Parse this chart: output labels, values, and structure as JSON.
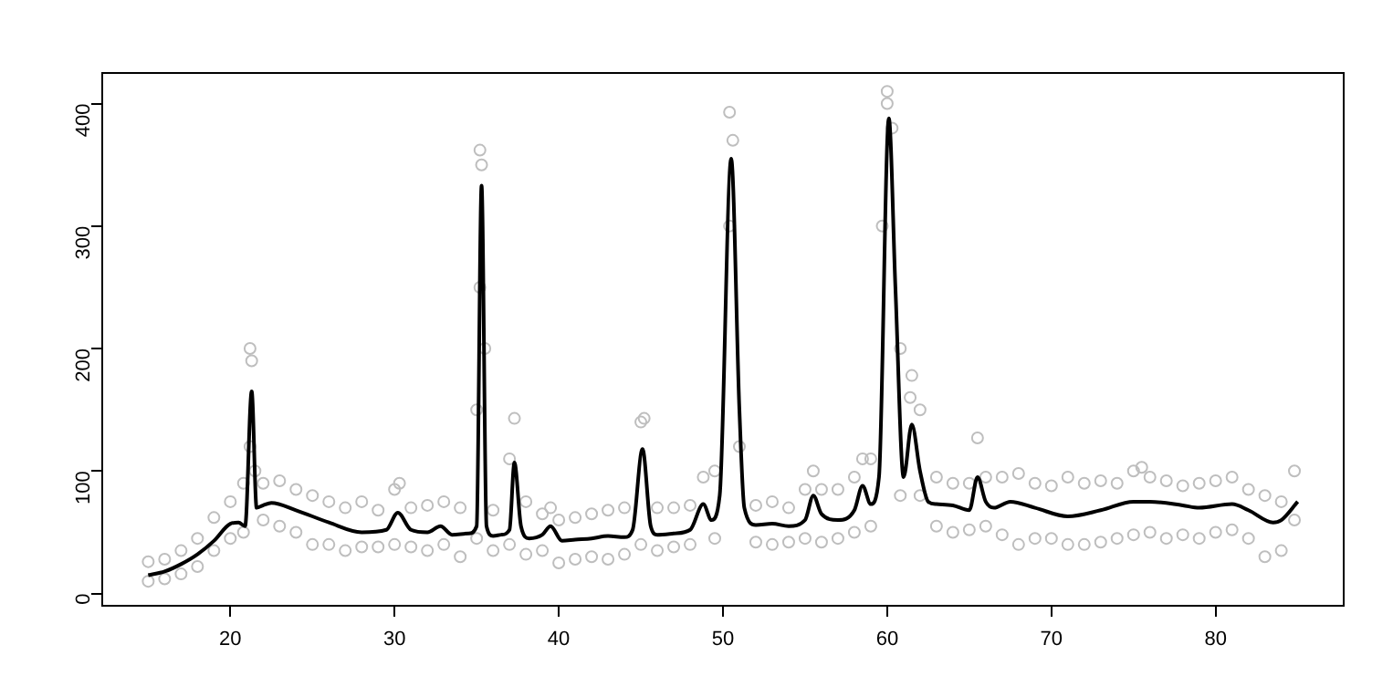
{
  "chart_data": {
    "type": "scatter",
    "xlim": [
      12.2,
      87.8
    ],
    "xticks": [
      20,
      30,
      40,
      50,
      60,
      70,
      80
    ],
    "ylim": [
      -10,
      425
    ],
    "yticks": [
      0,
      100,
      200,
      300,
      400
    ],
    "line_style": "solid",
    "series": [
      {
        "marker": "circle",
        "color": "#bebebe",
        "x": [
          15,
          15,
          16,
          16,
          17,
          17,
          18,
          18,
          19,
          19,
          20,
          20,
          20.8,
          20.8,
          21.2,
          21.2,
          21.3,
          21.5,
          22,
          22,
          23,
          23,
          24,
          24,
          25,
          25,
          26,
          26,
          27,
          27,
          28,
          28,
          29,
          29,
          30,
          30,
          30.3,
          31,
          31,
          32,
          32,
          33,
          33,
          34,
          34,
          35,
          35,
          35.2,
          35.2,
          35.3,
          35.5,
          36,
          36,
          37,
          37,
          37.3,
          38,
          38,
          39,
          39,
          39.5,
          40,
          40,
          41,
          41,
          42,
          42,
          43,
          43,
          44,
          44,
          45,
          45,
          45.2,
          46,
          46,
          47,
          47,
          48,
          48,
          48.8,
          49.5,
          49.5,
          50.4,
          50.4,
          50.6,
          51,
          52,
          52,
          53,
          53,
          54,
          54,
          55,
          55,
          55.5,
          56,
          56,
          57,
          57,
          58,
          58,
          58.5,
          59,
          59,
          59.7,
          60,
          60,
          60.3,
          60.8,
          60.8,
          61.4,
          61.5,
          62,
          62,
          63,
          63,
          64,
          64,
          65,
          65,
          65.5,
          66,
          66,
          67,
          67,
          68,
          68,
          69,
          69,
          70,
          70,
          71,
          71,
          72,
          72,
          73,
          73,
          74,
          74,
          75,
          75,
          75.5,
          76,
          76,
          77,
          77,
          78,
          78,
          79,
          79,
          80,
          80,
          81,
          81,
          82,
          82,
          83,
          83,
          84,
          84,
          84.8,
          84.8
        ],
        "values": [
          10,
          26,
          12,
          28,
          16,
          35,
          22,
          45,
          35,
          62,
          45,
          75,
          50,
          90,
          120,
          200,
          190,
          100,
          60,
          90,
          55,
          92,
          50,
          85,
          40,
          80,
          40,
          75,
          35,
          70,
          38,
          75,
          38,
          68,
          40,
          85,
          90,
          38,
          70,
          35,
          72,
          40,
          75,
          30,
          70,
          45,
          150,
          250,
          362,
          350,
          200,
          35,
          68,
          40,
          110,
          143,
          32,
          75,
          35,
          65,
          70,
          25,
          60,
          28,
          62,
          30,
          65,
          28,
          68,
          32,
          70,
          40,
          140,
          143,
          35,
          70,
          38,
          70,
          40,
          72,
          95,
          45,
          100,
          300,
          393,
          370,
          120,
          42,
          72,
          40,
          75,
          42,
          70,
          45,
          85,
          100,
          42,
          85,
          45,
          85,
          50,
          95,
          110,
          55,
          110,
          300,
          400,
          410,
          380,
          200,
          80,
          160,
          178,
          80,
          150,
          55,
          95,
          50,
          90,
          52,
          90,
          127,
          55,
          95,
          48,
          95,
          40,
          98,
          45,
          90,
          45,
          88,
          40,
          95,
          40,
          90,
          42,
          92,
          45,
          90,
          48,
          100,
          103,
          50,
          95,
          45,
          92,
          48,
          88,
          45,
          90,
          50,
          92,
          52,
          95,
          45,
          85,
          30,
          80,
          35,
          75,
          60,
          100
        ]
      },
      {
        "type": "line",
        "marker": "none",
        "color": "#000000",
        "x": [
          15,
          16,
          17,
          18,
          19,
          20,
          20.5,
          20.9,
          21.3,
          21.6,
          22,
          22.5,
          24,
          26,
          28,
          29.5,
          30.2,
          31,
          32,
          32.8,
          33.5,
          34.5,
          35,
          35.3,
          35.6,
          36,
          36.5,
          37,
          37.3,
          37.7,
          38.2,
          39,
          39.5,
          40.2,
          41,
          42,
          43,
          44,
          44.5,
          45.1,
          45.6,
          46,
          47,
          48,
          48.8,
          49.3,
          49.8,
          50.5,
          51,
          51.3,
          52,
          53,
          54,
          55,
          55.5,
          56,
          57,
          58,
          58.5,
          59,
          59.5,
          60.1,
          60.5,
          61,
          61.5,
          62,
          62.5,
          63,
          64,
          65,
          65.5,
          66,
          66.5,
          67.5,
          69,
          71,
          73,
          75,
          76,
          78,
          79,
          81,
          82,
          83.5,
          84,
          85
        ],
        "values": [
          15,
          18,
          24,
          32,
          43,
          57,
          58,
          55,
          165,
          70,
          72,
          74,
          68,
          58,
          50,
          52,
          66,
          52,
          50,
          55,
          48,
          49,
          55,
          333,
          55,
          47,
          48,
          52,
          107,
          55,
          45,
          48,
          55,
          43,
          44,
          45,
          47,
          46,
          52,
          118,
          55,
          48,
          49,
          52,
          73,
          60,
          80,
          355,
          150,
          70,
          56,
          57,
          55,
          60,
          80,
          65,
          60,
          68,
          88,
          73,
          95,
          388,
          250,
          95,
          138,
          100,
          75,
          73,
          72,
          68,
          95,
          75,
          70,
          75,
          70,
          63,
          68,
          75,
          75,
          72,
          70,
          73,
          68,
          58,
          60,
          75
        ]
      }
    ]
  }
}
